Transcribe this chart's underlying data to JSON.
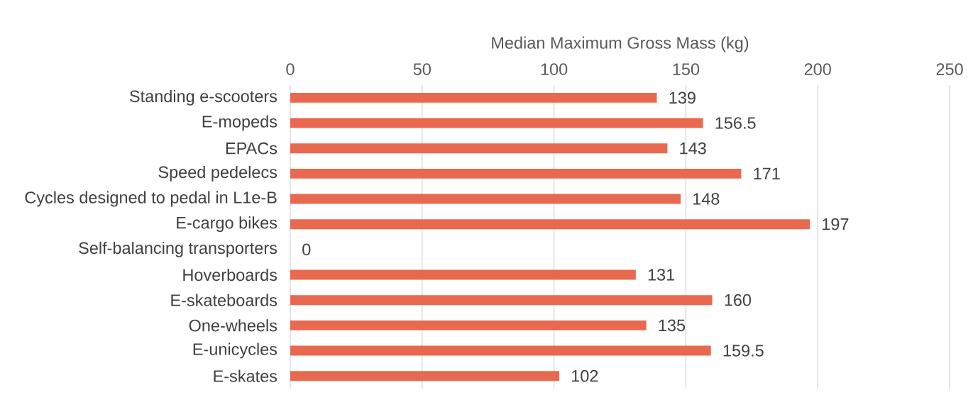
{
  "chart_data": {
    "type": "bar",
    "orientation": "horizontal",
    "xlabel": "Median Maximum Gross Mass (kg)",
    "categories": [
      "Standing e-scooters",
      "E-mopeds",
      "EPACs",
      "Speed pedelecs",
      "Cycles designed to pedal in L1e-B",
      "E-cargo bikes",
      "Self-balancing transporters",
      "Hoverboards",
      "E-skateboards",
      "One-wheels",
      "E-unicycles",
      "E-skates"
    ],
    "values": [
      139,
      156.5,
      143,
      171,
      148,
      197,
      0,
      131,
      160,
      135,
      159.5,
      102
    ],
    "color": "#e8694f",
    "xlim": [
      0,
      250
    ],
    "xticks": [
      0,
      50,
      100,
      150,
      200,
      250
    ],
    "grid": "x",
    "data_labels": true
  }
}
